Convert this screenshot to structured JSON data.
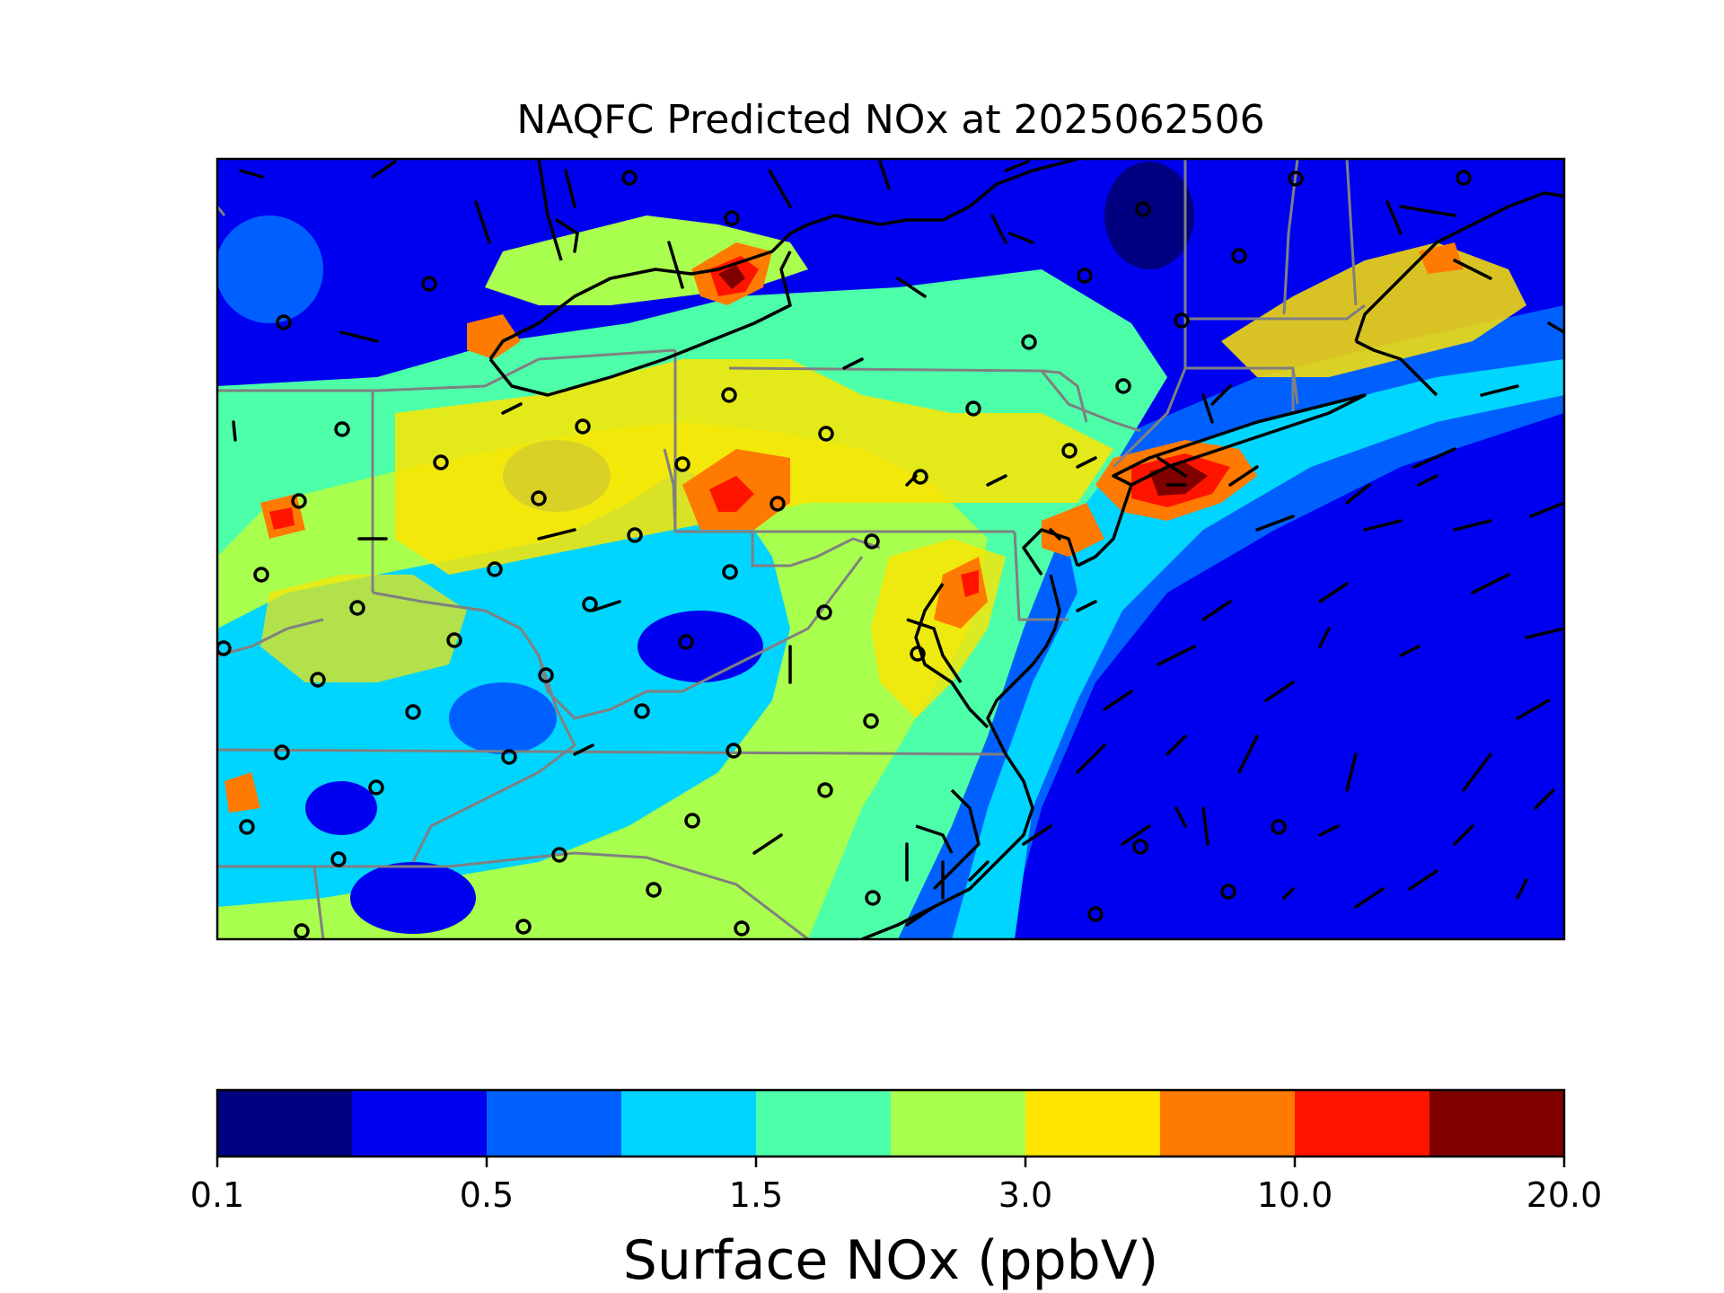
{
  "figure": {
    "title": "NAQFC Predicted NOx at 2025062506"
  },
  "map": {
    "field": "surface_nox",
    "basemap_layers": [
      "coastlines",
      "state-borders"
    ],
    "overlays": [
      "station-markers",
      "wind-barbs"
    ]
  },
  "colorbar": {
    "label": "Surface NOx (ppbV)",
    "colors": [
      "#000080",
      "#0000f1",
      "#0060ff",
      "#00d5ff",
      "#4dffa9",
      "#a9ff4d",
      "#ffe500",
      "#ff7a00",
      "#ff1400",
      "#800000"
    ],
    "tick_labels": [
      "0.1",
      "0.5",
      "1.5",
      "3.0",
      "10.0",
      "20.0"
    ],
    "tick_indices": [
      0,
      2,
      4,
      6,
      8,
      10
    ]
  }
}
